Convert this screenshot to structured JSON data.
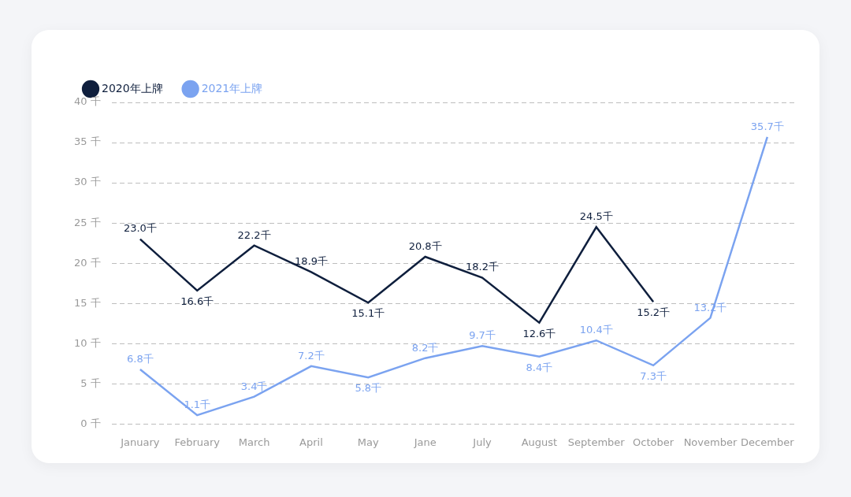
{
  "chart_data": {
    "type": "line",
    "categories": [
      "January",
      "February",
      "March",
      "April",
      "May",
      "Jane",
      "July",
      "August",
      "September",
      "October",
      "November",
      "December"
    ],
    "series": [
      {
        "name": "2020年上牌",
        "color": "#0f1f3d",
        "values": [
          23.0,
          16.6,
          22.2,
          18.9,
          15.1,
          20.8,
          18.2,
          12.6,
          24.5,
          15.2,
          null,
          null
        ],
        "value_labels": [
          "23.0千",
          "16.6千",
          "22.2千",
          "18.9千",
          "15.1千",
          "20.8千",
          "18.2千",
          "12.6千",
          "24.5千",
          "15.2千",
          null,
          null
        ]
      },
      {
        "name": "2021年上牌",
        "color": "#7ba3f0",
        "values": [
          6.8,
          1.1,
          3.4,
          7.2,
          5.8,
          8.2,
          9.7,
          8.4,
          10.4,
          7.3,
          13.2,
          35.7
        ],
        "value_labels": [
          "6.8千",
          "1.1千",
          "3.4千",
          "7.2千",
          "5.8千",
          "8.2千",
          "9.7千",
          "8.4千",
          "10.4千",
          "7.3千",
          "13.2千",
          "35.7千"
        ]
      }
    ],
    "ylim": [
      0,
      40
    ],
    "yticks": [
      {
        "value": 0,
        "label": "0 千"
      },
      {
        "value": 5,
        "label": "5 千"
      },
      {
        "value": 10,
        "label": "10 千"
      },
      {
        "value": 15,
        "label": "15 千"
      },
      {
        "value": 20,
        "label": "20 千"
      },
      {
        "value": 25,
        "label": "25 千"
      },
      {
        "value": 30,
        "label": "30 千"
      },
      {
        "value": 35,
        "label": "35 千"
      },
      {
        "value": 40,
        "label": "40 千"
      }
    ],
    "grid": true,
    "legend": "top-left",
    "data_labels": true
  }
}
